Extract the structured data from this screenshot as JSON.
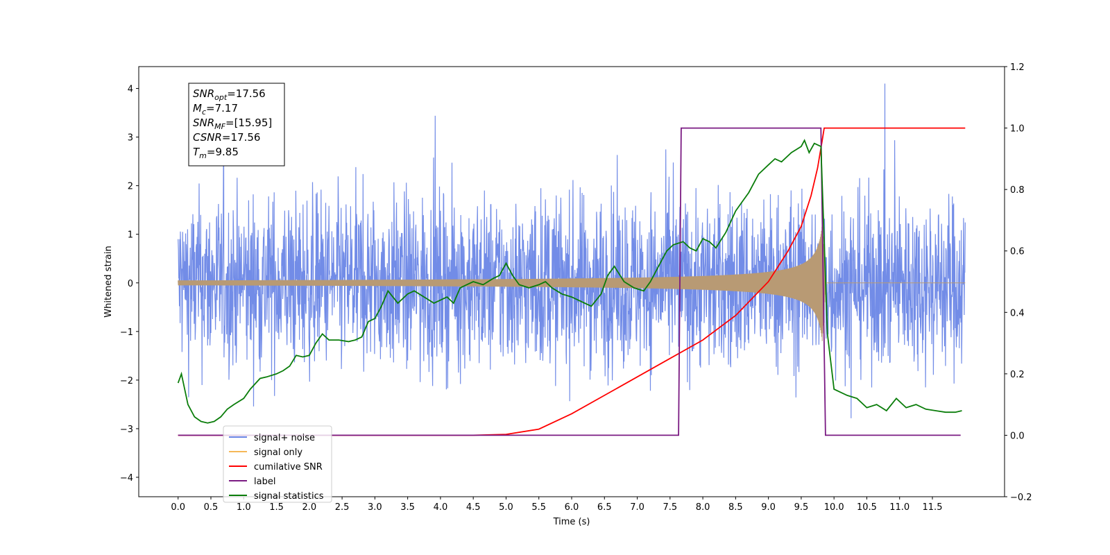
{
  "chart_data": {
    "type": "line",
    "xlabel": "Time (s)",
    "ylabel": "Whitened strain",
    "xlim": [
      -0.6,
      12.6
    ],
    "ylim": [
      -4.4,
      4.45
    ],
    "y2lim": [
      -0.2,
      1.2
    ],
    "xticks": [
      "0.0",
      "0.5",
      "1.0",
      "1.5",
      "2.0",
      "2.5",
      "3.0",
      "3.5",
      "4.0",
      "4.5",
      "5.0",
      "5.5",
      "6.0",
      "6.5",
      "7.0",
      "7.5",
      "8.0",
      "8.5",
      "9.0",
      "9.5",
      "10.0",
      "10.5",
      "11.0",
      "11.5"
    ],
    "xtick_values": [
      0,
      0.5,
      1,
      1.5,
      2,
      2.5,
      3,
      3.5,
      4,
      4.5,
      5,
      5.5,
      6,
      6.5,
      7,
      7.5,
      8,
      8.5,
      9,
      9.5,
      10,
      10.5,
      11,
      11.5
    ],
    "yticks": [
      "−4",
      "−3",
      "−2",
      "−1",
      "0",
      "1",
      "2",
      "3",
      "4"
    ],
    "ytick_values": [
      -4,
      -3,
      -2,
      -1,
      0,
      1,
      2,
      3,
      4
    ],
    "y2ticks": [
      "−0.2",
      "0.0",
      "0.2",
      "0.4",
      "0.6",
      "0.8",
      "1.0",
      "1.2"
    ],
    "y2tick_values": [
      -0.2,
      0,
      0.2,
      0.4,
      0.6,
      0.8,
      1.0,
      1.2
    ],
    "legend_position": "lower-left",
    "grid": false,
    "annotations": [
      {
        "var": "SNR",
        "sub": "opt",
        "value": "=17.56"
      },
      {
        "var": "M",
        "sub": "c",
        "value": "=7.17"
      },
      {
        "var": "SNR",
        "sub": "MF",
        "value": "=[15.95]"
      },
      {
        "var": "CSNR",
        "sub": "",
        "value": "=17.56"
      },
      {
        "var": "T",
        "sub": "m",
        "value": "=9.85"
      }
    ],
    "series": [
      {
        "name": "signal+ noise",
        "color": "#6a86e6",
        "axis": "left",
        "kind": "noise",
        "x_range": [
          0,
          12.0
        ],
        "amplitude_envelope": 2.4,
        "peak_time": 9.85
      },
      {
        "name": "signal only",
        "color": "#f5b857",
        "axis": "left",
        "kind": "chirp",
        "x_range": [
          0,
          12.0
        ],
        "peak_time": 9.82,
        "peak_amplitude": 1.2
      },
      {
        "name": "cumilative SNR",
        "color": "#ff0000",
        "axis": "right",
        "x": [
          0,
          4.5,
          5.0,
          5.5,
          6.0,
          6.5,
          7.0,
          7.5,
          8.0,
          8.5,
          9.0,
          9.3,
          9.5,
          9.65,
          9.75,
          9.82,
          9.85,
          12.0
        ],
        "values": [
          0,
          0,
          0.003,
          0.02,
          0.07,
          0.13,
          0.19,
          0.25,
          0.31,
          0.39,
          0.5,
          0.6,
          0.68,
          0.78,
          0.87,
          0.96,
          1.0,
          1.0
        ]
      },
      {
        "name": "label",
        "color": "#7a1a82",
        "axis": "right",
        "x": [
          0,
          7.63,
          7.67,
          9.8,
          9.87,
          11.93
        ],
        "values": [
          0,
          0,
          1,
          1,
          0,
          0
        ]
      },
      {
        "name": "signal statistics",
        "color": "#0a7d0a",
        "axis": "right",
        "x": [
          0,
          0.05,
          0.1,
          0.15,
          0.25,
          0.35,
          0.45,
          0.55,
          0.65,
          0.75,
          0.85,
          1.0,
          1.1,
          1.25,
          1.35,
          1.5,
          1.6,
          1.7,
          1.8,
          1.9,
          2.0,
          2.1,
          2.2,
          2.3,
          2.45,
          2.6,
          2.7,
          2.8,
          2.9,
          3.0,
          3.1,
          3.2,
          3.35,
          3.5,
          3.6,
          3.75,
          3.9,
          4.0,
          4.1,
          4.2,
          4.3,
          4.4,
          4.5,
          4.65,
          4.8,
          4.9,
          5.0,
          5.1,
          5.2,
          5.35,
          5.5,
          5.6,
          5.7,
          5.85,
          6.0,
          6.1,
          6.2,
          6.3,
          6.45,
          6.55,
          6.65,
          6.8,
          6.95,
          7.1,
          7.2,
          7.35,
          7.45,
          7.55,
          7.7,
          7.8,
          7.9,
          8.0,
          8.1,
          8.2,
          8.35,
          8.5,
          8.6,
          8.7,
          8.85,
          9.0,
          9.1,
          9.2,
          9.35,
          9.5,
          9.55,
          9.62,
          9.7,
          9.8,
          9.9,
          10.0,
          10.1,
          10.2,
          10.35,
          10.5,
          10.65,
          10.8,
          10.95,
          11.1,
          11.25,
          11.4,
          11.55,
          11.7,
          11.85,
          11.95
        ],
        "values": [
          0.17,
          0.2,
          0.15,
          0.1,
          0.06,
          0.045,
          0.04,
          0.045,
          0.06,
          0.085,
          0.1,
          0.12,
          0.15,
          0.185,
          0.19,
          0.2,
          0.21,
          0.225,
          0.26,
          0.255,
          0.26,
          0.3,
          0.33,
          0.31,
          0.31,
          0.305,
          0.31,
          0.32,
          0.37,
          0.38,
          0.42,
          0.47,
          0.43,
          0.46,
          0.47,
          0.45,
          0.43,
          0.44,
          0.45,
          0.43,
          0.48,
          0.49,
          0.5,
          0.49,
          0.51,
          0.52,
          0.56,
          0.52,
          0.49,
          0.48,
          0.49,
          0.5,
          0.48,
          0.46,
          0.45,
          0.44,
          0.43,
          0.42,
          0.46,
          0.52,
          0.55,
          0.5,
          0.48,
          0.47,
          0.5,
          0.56,
          0.6,
          0.62,
          0.63,
          0.61,
          0.6,
          0.64,
          0.63,
          0.61,
          0.66,
          0.73,
          0.76,
          0.79,
          0.85,
          0.88,
          0.9,
          0.89,
          0.92,
          0.94,
          0.96,
          0.92,
          0.95,
          0.94,
          0.33,
          0.15,
          0.14,
          0.13,
          0.12,
          0.09,
          0.1,
          0.08,
          0.12,
          0.09,
          0.1,
          0.085,
          0.08,
          0.075,
          0.075,
          0.08
        ]
      }
    ]
  }
}
